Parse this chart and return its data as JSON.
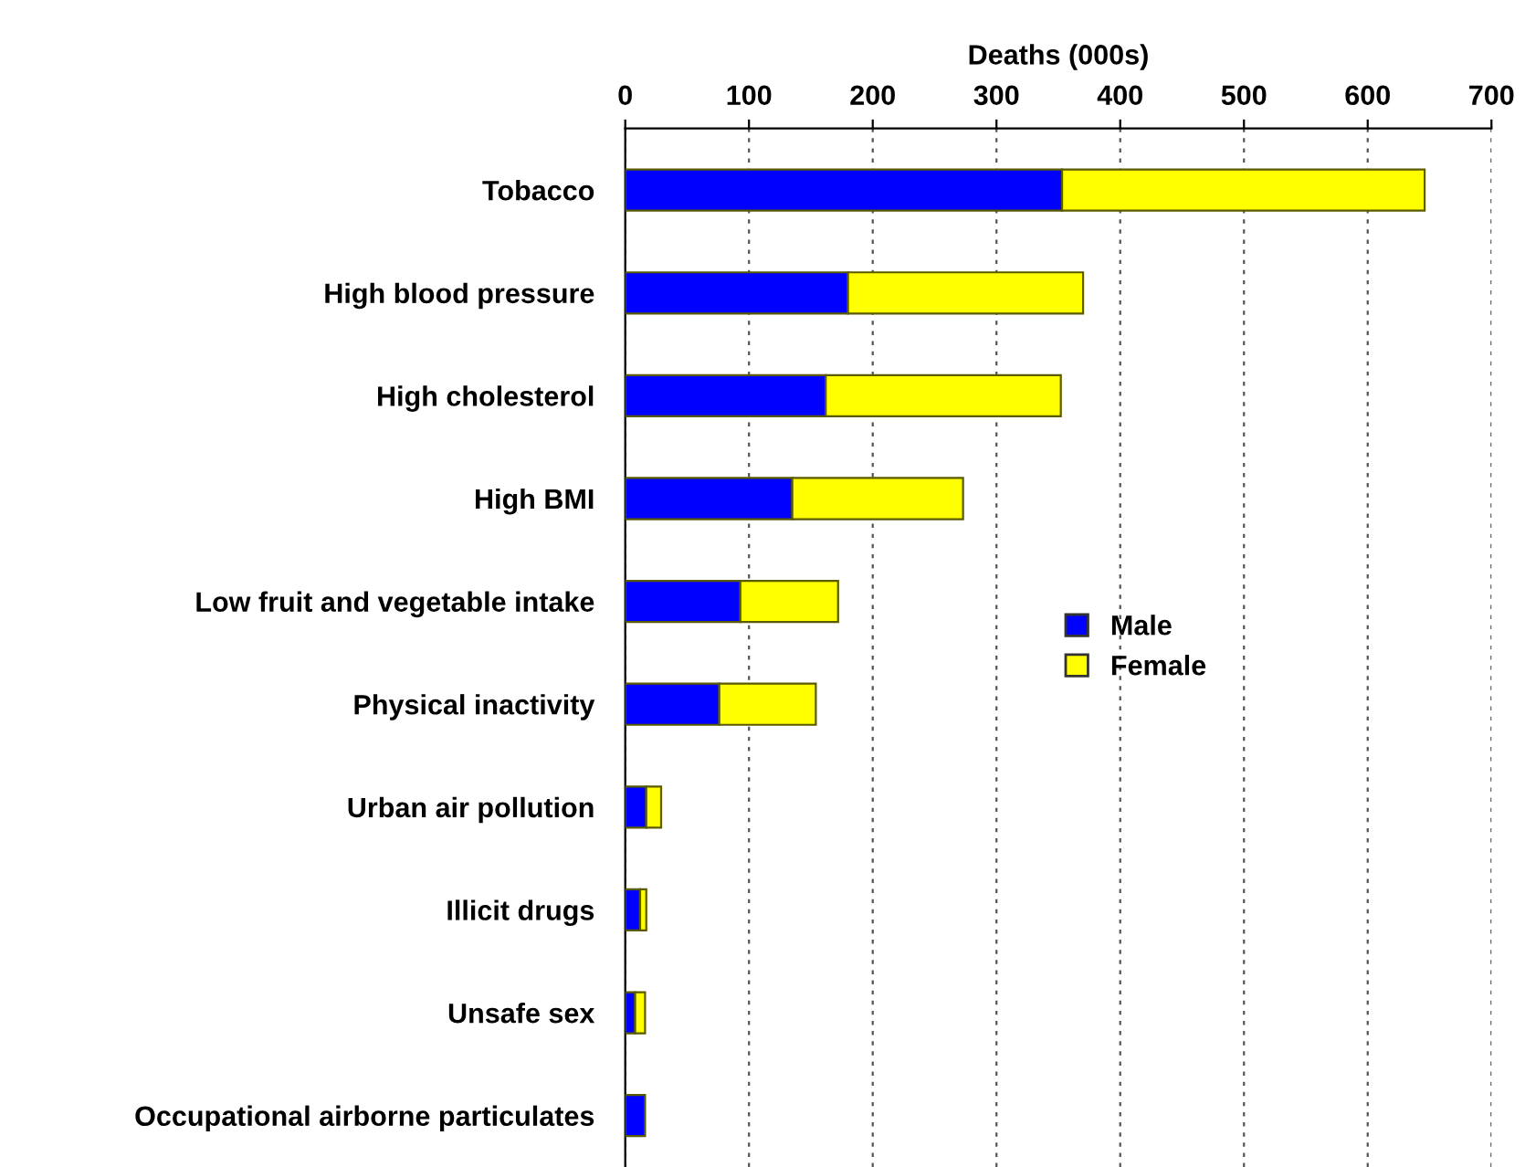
{
  "chart_data": {
    "type": "bar",
    "orientation": "horizontal",
    "stacked": true,
    "xlabel": "Deaths (000s)",
    "categories": [
      "Tobacco",
      "High blood pressure",
      "High cholesterol",
      "High BMI",
      "Low fruit and vegetable intake",
      "Physical inactivity",
      "Urban air pollution",
      "Illicit drugs",
      "Unsafe sex",
      "Occupational airborne particulates"
    ],
    "series": [
      {
        "name": "Male",
        "color": "#0000ff",
        "values": [
          353,
          180,
          162,
          135,
          93,
          76,
          17,
          12,
          8,
          16
        ]
      },
      {
        "name": "Female",
        "color": "#ffff00",
        "values": [
          293,
          190,
          190,
          138,
          79,
          78,
          12,
          5,
          8,
          null
        ]
      }
    ],
    "xlim": [
      0,
      700
    ],
    "xticks": [
      0,
      100,
      200,
      300,
      400,
      500,
      600,
      700
    ],
    "grid": "x",
    "legend": "right"
  }
}
